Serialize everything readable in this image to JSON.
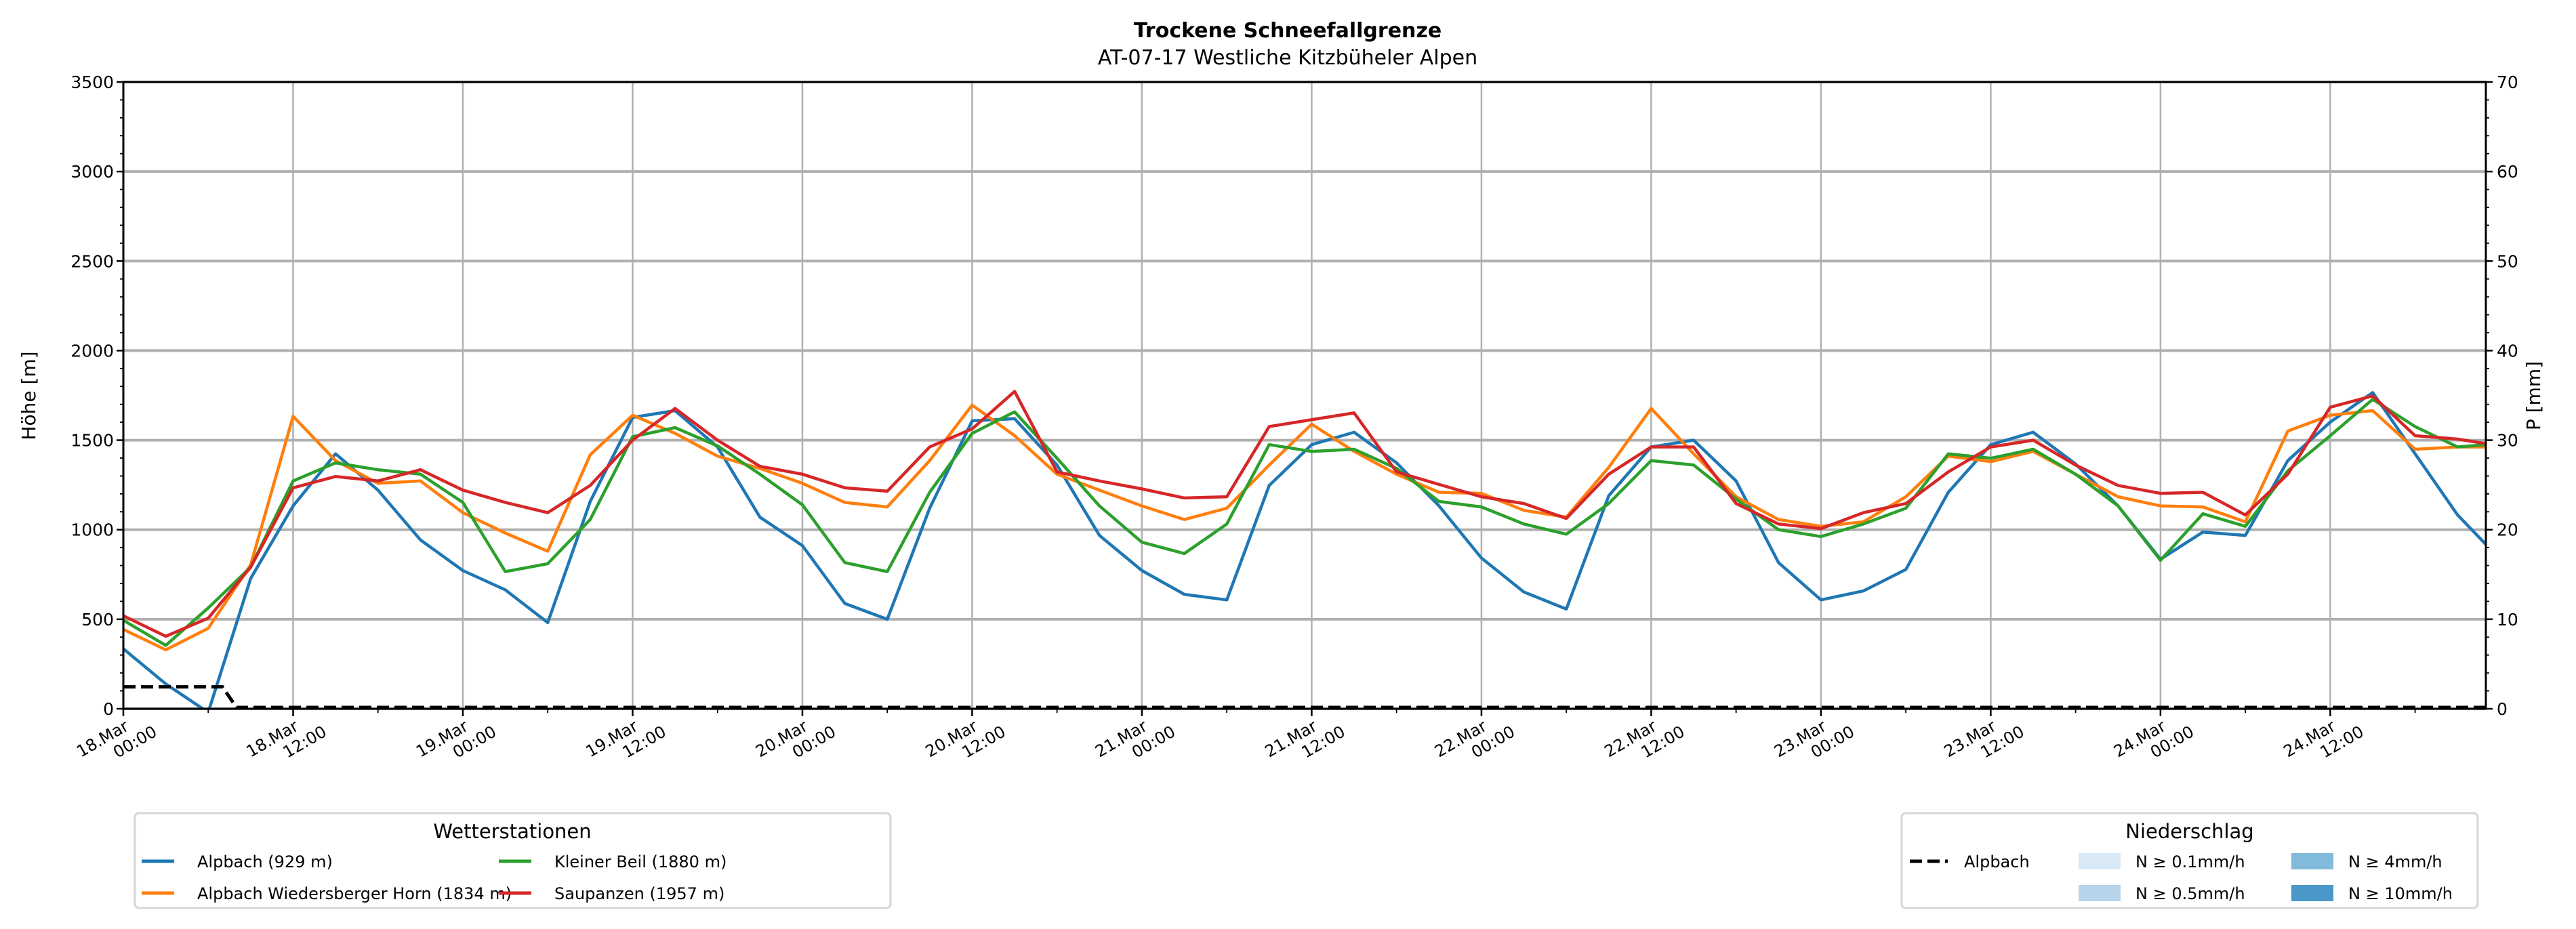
{
  "chart_data": {
    "type": "line",
    "title": "Trockene Schneefallgrenze",
    "subtitle": "AT-07-17 Westliche Kitzbüheler Alpen",
    "ylabel": "Höhe [m]",
    "ylabel_right": "P [mm]",
    "ylim": [
      0,
      3500
    ],
    "ylim_right": [
      0,
      70
    ],
    "yticks": [
      "0",
      "500",
      "1000",
      "1500",
      "2000",
      "2500",
      "3000",
      "3500"
    ],
    "yticks_right": [
      "0",
      "10",
      "20",
      "30",
      "40",
      "50",
      "60",
      "70"
    ],
    "xlim_hours": [
      0,
      167
    ],
    "xtick_labels": [
      [
        "18.Mar",
        "00:00"
      ],
      [
        "18.Mar",
        "12:00"
      ],
      [
        "19.Mar",
        "00:00"
      ],
      [
        "19.Mar",
        "12:00"
      ],
      [
        "20.Mar",
        "00:00"
      ],
      [
        "20.Mar",
        "12:00"
      ],
      [
        "21.Mar",
        "00:00"
      ],
      [
        "21.Mar",
        "12:00"
      ],
      [
        "22.Mar",
        "00:00"
      ],
      [
        "22.Mar",
        "12:00"
      ],
      [
        "23.Mar",
        "00:00"
      ],
      [
        "23.Mar",
        "12:00"
      ],
      [
        "24.Mar",
        "00:00"
      ],
      [
        "24.Mar",
        "12:00"
      ]
    ],
    "grid": true,
    "x_hours": [
      0,
      3,
      6,
      9,
      12,
      15,
      18,
      21,
      24,
      27,
      30,
      33,
      36,
      39,
      42,
      45,
      48,
      51,
      54,
      57,
      60,
      63,
      66,
      69,
      72,
      75,
      78,
      81,
      84,
      87,
      90,
      93,
      96,
      99,
      102,
      105,
      108,
      111,
      114,
      117,
      120,
      123,
      126,
      129,
      132,
      135,
      138,
      141,
      144,
      147,
      150,
      153,
      156,
      159,
      162,
      165,
      167
    ],
    "series": [
      {
        "name": "Alpbach (929 m)",
        "color": "#1f77b4",
        "values": [
          335,
          139,
          -20,
          728,
          1133,
          1424,
          1221,
          943,
          772,
          664,
          481,
          1158,
          1627,
          1665,
          1462,
          1070,
          911,
          588,
          500,
          1120,
          1608,
          1620,
          1361,
          968,
          772,
          639,
          608,
          1247,
          1475,
          1544,
          1373,
          1133,
          842,
          652,
          557,
          1190,
          1462,
          1500,
          1272,
          816,
          608,
          658,
          778,
          1209,
          1475,
          1544,
          1367,
          1133,
          835,
          987,
          968,
          1386,
          1601,
          1766,
          1424,
          1082,
          918
        ]
      },
      {
        "name": "Alpbach Wiedersberger Horn (1834 m)",
        "color": "#ff7f0e",
        "values": [
          443,
          329,
          449,
          804,
          1633,
          1386,
          1259,
          1272,
          1095,
          981,
          880,
          1418,
          1639,
          1538,
          1411,
          1342,
          1259,
          1152,
          1127,
          1386,
          1696,
          1525,
          1310,
          1221,
          1133,
          1057,
          1120,
          1361,
          1589,
          1437,
          1310,
          1209,
          1203,
          1108,
          1070,
          1348,
          1677,
          1424,
          1184,
          1057,
          1019,
          1044,
          1184,
          1411,
          1380,
          1437,
          1310,
          1184,
          1133,
          1127,
          1044,
          1551,
          1639,
          1665,
          1449,
          1462,
          1462
        ]
      },
      {
        "name": "Kleiner Beil (1880 m)",
        "color": "#2ca02c",
        "values": [
          494,
          354,
          563,
          791,
          1272,
          1373,
          1335,
          1310,
          1152,
          766,
          810,
          1057,
          1519,
          1570,
          1468,
          1310,
          1139,
          816,
          766,
          1209,
          1538,
          1658,
          1399,
          1133,
          930,
          867,
          1032,
          1475,
          1437,
          1449,
          1342,
          1158,
          1127,
          1032,
          975,
          1146,
          1386,
          1361,
          1171,
          1000,
          962,
          1032,
          1120,
          1424,
          1399,
          1449,
          1310,
          1133,
          829,
          1089,
          1019,
          1329,
          1525,
          1728,
          1576,
          1462,
          1475
        ]
      },
      {
        "name": "Saupanzen (1957 m)",
        "color": "#d62728",
        "values": [
          519,
          405,
          506,
          791,
          1234,
          1297,
          1272,
          1335,
          1221,
          1152,
          1095,
          1247,
          1500,
          1677,
          1500,
          1354,
          1310,
          1234,
          1215,
          1462,
          1563,
          1772,
          1323,
          1272,
          1228,
          1177,
          1184,
          1576,
          1614,
          1652,
          1323,
          1253,
          1184,
          1146,
          1063,
          1310,
          1462,
          1462,
          1146,
          1032,
          1006,
          1095,
          1146,
          1323,
          1462,
          1500,
          1361,
          1247,
          1203,
          1209,
          1082,
          1310,
          1684,
          1747,
          1525,
          1506,
          1481
        ]
      }
    ],
    "precipitation": {
      "name": "Alpbach",
      "unit": "mm",
      "x_hours": [
        0,
        7,
        8,
        167
      ],
      "values": [
        2.3,
        2.3,
        0,
        0
      ]
    },
    "legend_stations": {
      "title": "Wetterstationen",
      "placement": "bottom-left",
      "entries": [
        "Alpbach (929 m)",
        "Alpbach Wiedersberger Horn (1834 m)",
        "Kleiner Beil (1880 m)",
        "Saupanzen (1957 m)"
      ]
    },
    "legend_precip": {
      "title": "Niederschlag",
      "placement": "bottom-right",
      "line_label": "Alpbach",
      "classes": [
        {
          "label": "N ≥ 0.1mm/h",
          "color": "#d9e8f5"
        },
        {
          "label": "N ≥ 0.5mm/h",
          "color": "#b8d4ea"
        },
        {
          "label": "N ≥ 4mm/h",
          "color": "#82badb"
        },
        {
          "label": "N ≥ 10mm/h",
          "color": "#4a97c9"
        }
      ]
    }
  }
}
